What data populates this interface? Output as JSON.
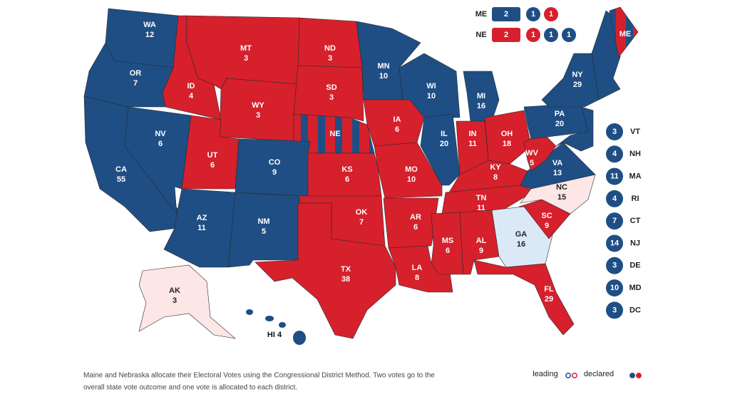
{
  "states": [
    {
      "abbr": "WA",
      "votes": 12,
      "color": "#1f4e85"
    },
    {
      "abbr": "OR",
      "votes": 7,
      "color": "#1f4e85"
    },
    {
      "abbr": "CA",
      "votes": 55,
      "color": "#1f4e85"
    },
    {
      "abbr": "NV",
      "votes": 6,
      "color": "#1f4e85"
    },
    {
      "abbr": "ID",
      "votes": 4,
      "color": "#d6202c"
    },
    {
      "abbr": "MT",
      "votes": 3,
      "color": "#d6202c"
    },
    {
      "abbr": "WY",
      "votes": 3,
      "color": "#d6202c"
    },
    {
      "abbr": "UT",
      "votes": 6,
      "color": "#d6202c"
    },
    {
      "abbr": "CO",
      "votes": 9,
      "color": "#1f4e85"
    },
    {
      "abbr": "AZ",
      "votes": 11,
      "color": "#1f4e85"
    },
    {
      "abbr": "NM",
      "votes": 5,
      "color": "#1f4e85"
    },
    {
      "abbr": "ND",
      "votes": 3,
      "color": "#d6202c"
    },
    {
      "abbr": "SD",
      "votes": 3,
      "color": "#d6202c"
    },
    {
      "abbr": "NE",
      "colors": [
        "#d6202c",
        "#1f4e85"
      ]
    },
    {
      "abbr": "KS",
      "votes": 6,
      "color": "#d6202c"
    },
    {
      "abbr": "OK",
      "votes": 7,
      "color": "#d6202c"
    },
    {
      "abbr": "TX",
      "votes": 38,
      "color": "#d6202c"
    },
    {
      "abbr": "MN",
      "votes": 10,
      "color": "#1f4e85"
    },
    {
      "abbr": "IA",
      "votes": 6,
      "color": "#d6202c"
    },
    {
      "abbr": "MO",
      "votes": 10,
      "color": "#d6202c"
    },
    {
      "abbr": "AR",
      "votes": 6,
      "color": "#d6202c"
    },
    {
      "abbr": "LA",
      "votes": 8,
      "color": "#d6202c"
    },
    {
      "abbr": "WI",
      "votes": 10,
      "color": "#1f4e85"
    },
    {
      "abbr": "IL",
      "votes": 20,
      "color": "#1f4e85"
    },
    {
      "abbr": "MI",
      "votes": 16,
      "color": "#1f4e85"
    },
    {
      "abbr": "IN",
      "votes": 11,
      "color": "#d6202c"
    },
    {
      "abbr": "OH",
      "votes": 18,
      "color": "#d6202c"
    },
    {
      "abbr": "KY",
      "votes": 8,
      "color": "#d6202c"
    },
    {
      "abbr": "TN",
      "votes": 11,
      "color": "#d6202c"
    },
    {
      "abbr": "MS",
      "votes": 6,
      "color": "#d6202c"
    },
    {
      "abbr": "AL",
      "votes": 9,
      "color": "#d6202c"
    },
    {
      "abbr": "GA",
      "votes": 16,
      "color": "#dbe9f7"
    },
    {
      "abbr": "FL",
      "votes": 29,
      "color": "#d6202c"
    },
    {
      "abbr": "SC",
      "votes": 9,
      "color": "#d6202c"
    },
    {
      "abbr": "NC",
      "votes": 15,
      "color": "#fde6e6"
    },
    {
      "abbr": "VA",
      "votes": 13,
      "color": "#1f4e85"
    },
    {
      "abbr": "WV",
      "votes": 5,
      "color": "#d6202c"
    },
    {
      "abbr": "PA",
      "votes": 20,
      "color": "#1f4e85"
    },
    {
      "abbr": "NY",
      "votes": 29,
      "color": "#1f4e85"
    },
    {
      "abbr": "ME",
      "colors": [
        "#d6202c",
        "#1f4e85"
      ]
    },
    {
      "abbr": "AK",
      "votes": 3,
      "color": "#fde6e6"
    },
    {
      "label": "HI 4",
      "color": "#1f4e85"
    }
  ],
  "district_method": [
    {
      "state": "ME",
      "items": [
        {
          "votes": 2,
          "color": "#1f4e85"
        },
        {
          "votes": 1,
          "color": "#1f4e85"
        },
        {
          "votes": 1,
          "color": "#d6202c"
        }
      ]
    },
    {
      "state": "NE",
      "items": [
        {
          "votes": 2,
          "color": "#d6202c"
        },
        {
          "votes": 1,
          "color": "#d6202c"
        },
        {
          "votes": 1,
          "color": "#1f4e85"
        },
        {
          "votes": 1,
          "color": "#1f4e85"
        }
      ]
    }
  ],
  "small_states": [
    {
      "votes": 3,
      "abbr": "VT",
      "color": "#1f4e85"
    },
    {
      "votes": 4,
      "abbr": "NH",
      "color": "#1f4e85"
    },
    {
      "votes": 11,
      "abbr": "MA",
      "color": "#1f4e85"
    },
    {
      "votes": 4,
      "abbr": "RI",
      "color": "#1f4e85"
    },
    {
      "votes": 7,
      "abbr": "CT",
      "color": "#1f4e85"
    },
    {
      "votes": 14,
      "abbr": "NJ",
      "color": "#1f4e85"
    },
    {
      "votes": 3,
      "abbr": "DE",
      "color": "#1f4e85"
    },
    {
      "votes": 10,
      "abbr": "MD",
      "color": "#1f4e85"
    },
    {
      "votes": 3,
      "abbr": "DC",
      "color": "#1f4e85"
    }
  ],
  "footnote": [
    "Maine and Nebraska allocate their Electoral Votes using the Congressional District Method. Two votes go to the",
    "overall state vote outcome and one vote is allocated to each district."
  ],
  "legend": [
    {
      "label": "leading",
      "colors": [
        "#1f4e85",
        "#d6202c"
      ],
      "filled": false
    },
    {
      "label": "declared",
      "colors": [
        "#1f4e85",
        "#d6202c"
      ],
      "filled": true
    }
  ]
}
